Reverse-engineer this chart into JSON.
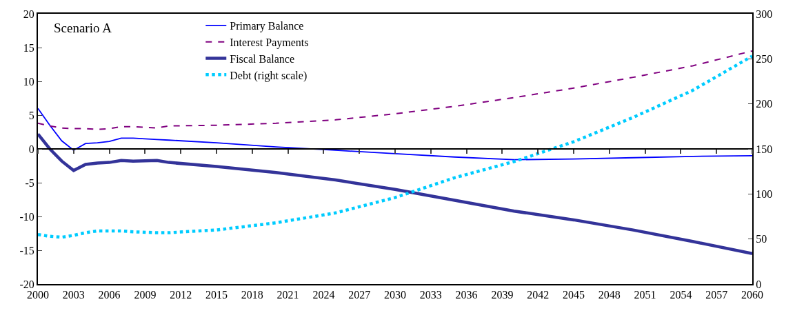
{
  "chart_data": {
    "type": "line",
    "annotations": [
      "Scenario A"
    ],
    "x": [
      2000,
      2001,
      2002,
      2003,
      2004,
      2005,
      2006,
      2007,
      2008,
      2010,
      2011,
      2015,
      2020,
      2025,
      2030,
      2035,
      2040,
      2045,
      2050,
      2055,
      2060
    ],
    "series": [
      {
        "name": "Primary Balance",
        "color": "#0000ff",
        "line_style": "solid",
        "values": [
          6.0,
          3.5,
          1.2,
          -0.2,
          0.8,
          0.9,
          1.1,
          1.6,
          1.6,
          1.4,
          1.3,
          0.9,
          0.3,
          -0.2,
          -0.7,
          -1.2,
          -1.6,
          -1.5,
          -1.3,
          -1.1,
          -1.0
        ]
      },
      {
        "name": "Interest Payments",
        "color": "#800080",
        "line_style": "dashed",
        "values": [
          3.8,
          3.4,
          3.1,
          3.0,
          3.0,
          2.9,
          3.0,
          3.3,
          3.3,
          3.1,
          3.4,
          3.5,
          3.8,
          4.3,
          5.2,
          6.3,
          7.6,
          9.0,
          10.6,
          12.3,
          14.5
        ]
      },
      {
        "name": "Fiscal Balance",
        "color": "#333399",
        "line_style": "solid",
        "values": [
          2.2,
          0.0,
          -1.8,
          -3.2,
          -2.3,
          -2.1,
          -2.0,
          -1.7,
          -1.8,
          -1.7,
          -2.0,
          -2.6,
          -3.5,
          -4.6,
          -6.0,
          -7.6,
          -9.2,
          -10.5,
          -12.0,
          -13.7,
          -15.5
        ]
      },
      {
        "name": "Debt (right scale)",
        "color": "#00ccff",
        "line_style": "dotted",
        "axis": "y2",
        "values": [
          55,
          53,
          52,
          54,
          57,
          59,
          59,
          59,
          58,
          57,
          57,
          60,
          68,
          79,
          96,
          118,
          136,
          158,
          185,
          215,
          253
        ]
      }
    ],
    "xlim": [
      2000,
      2060
    ],
    "xticks": [
      2000,
      2003,
      2006,
      2009,
      2012,
      2015,
      2018,
      2021,
      2024,
      2027,
      2030,
      2033,
      2036,
      2039,
      2042,
      2045,
      2048,
      2051,
      2054,
      2057,
      2060
    ],
    "ylim": [
      -20,
      20
    ],
    "yticks": [
      -20,
      -15,
      -10,
      -5,
      0,
      5,
      10,
      15,
      20
    ],
    "y2lim": [
      0,
      300
    ],
    "y2ticks": [
      0,
      50,
      100,
      150,
      200,
      250,
      300
    ],
    "legend": "top",
    "marker": "none"
  }
}
